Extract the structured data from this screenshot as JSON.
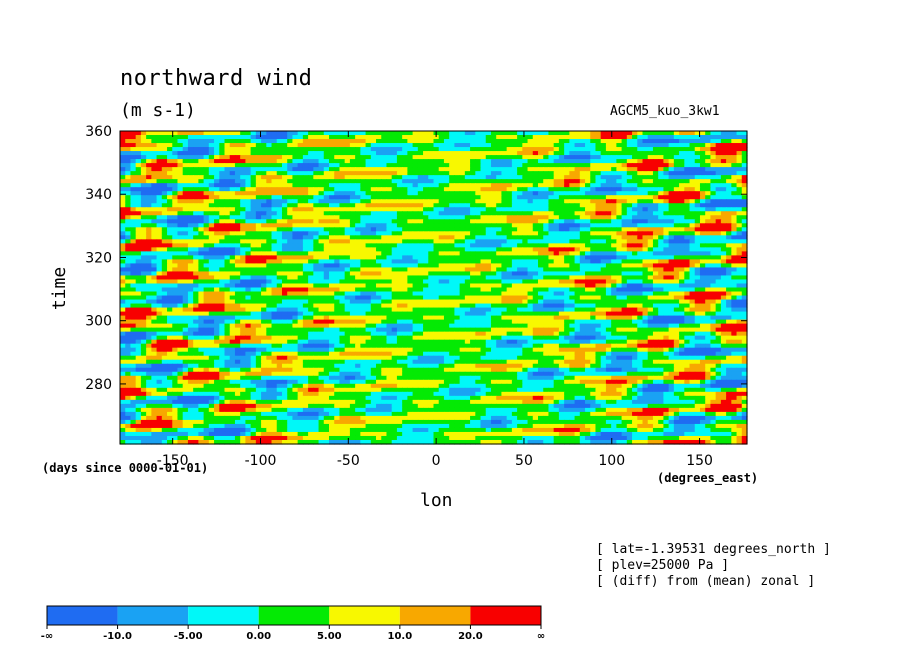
{
  "header": {
    "title": "northward wind",
    "units": "(m s-1)",
    "run": "AGCM5_kuo_3kw1"
  },
  "axes": {
    "ylabel": "time",
    "xlabel": "lon",
    "time_units": "(days since 0000-01-01)",
    "lon_units": "(degrees_east)"
  },
  "info": [
    "[ lat=-1.39531 degrees_north ]",
    "[ plev=25000 Pa ]",
    "[ (diff) from (mean) zonal ]"
  ],
  "chart_data": {
    "type": "heatmap",
    "title": "northward wind",
    "xlabel": "lon",
    "ylabel": "time",
    "xlim": [
      -180,
      177
    ],
    "ylim": [
      261,
      360
    ],
    "x_ticks": [
      -150,
      -100,
      -50,
      0,
      50,
      100,
      150
    ],
    "x_tick_labels": [
      "-150",
      "-100",
      "-50",
      "0",
      "50",
      "100",
      "150"
    ],
    "y_ticks": [
      280,
      300,
      320,
      340,
      360
    ],
    "y_tick_labels": [
      "280",
      "300",
      "320",
      "340",
      "360"
    ],
    "colorbar": {
      "levels": [
        "-∞",
        "-10.0",
        "-5.00",
        "0.00",
        "5.00",
        "10.0",
        "20.0",
        "∞"
      ],
      "colors": [
        "#1f6cf2",
        "#1aa2f3",
        "#00f8f8",
        "#04ea04",
        "#f8f800",
        "#f8a800",
        "#f80000"
      ]
    }
  }
}
